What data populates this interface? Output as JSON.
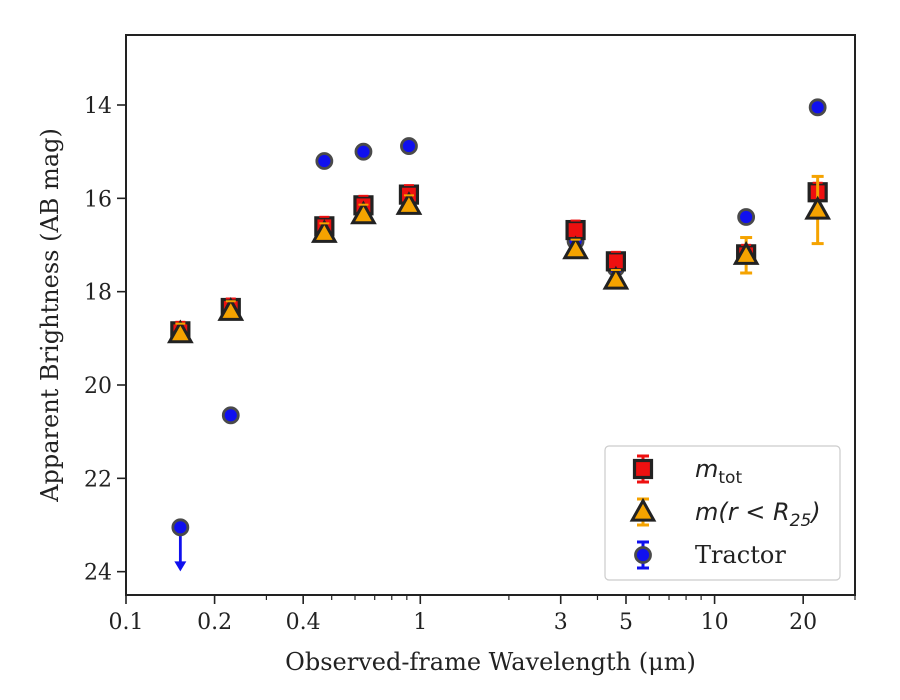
{
  "chart_data": {
    "type": "scatter",
    "title": "",
    "xlabel": "Observed-frame Wavelength (μm)",
    "ylabel": "Apparent Brightness (AB mag)",
    "xscale": "log",
    "xlim": [
      0.1,
      30
    ],
    "ylim": [
      24.5,
      12.5
    ],
    "y_inverted": true,
    "grid": false,
    "legend_position": "lower-right",
    "x_ticks": [
      {
        "value": 0.1,
        "label": "0.1"
      },
      {
        "value": 0.2,
        "label": "0.2"
      },
      {
        "value": 0.4,
        "label": "0.4"
      },
      {
        "value": 1,
        "label": "1"
      },
      {
        "value": 3,
        "label": "3"
      },
      {
        "value": 5,
        "label": "5"
      },
      {
        "value": 10,
        "label": "10"
      },
      {
        "value": 20,
        "label": "20"
      }
    ],
    "x_minor_ticks": [
      0.3,
      0.5,
      0.6,
      0.7,
      0.8,
      0.9,
      2,
      4,
      6,
      7,
      8,
      9,
      30
    ],
    "y_ticks": [
      {
        "value": 14,
        "label": "14"
      },
      {
        "value": 16,
        "label": "16"
      },
      {
        "value": 18,
        "label": "18"
      },
      {
        "value": 20,
        "label": "20"
      },
      {
        "value": 22,
        "label": "22"
      },
      {
        "value": 24,
        "label": "24"
      }
    ],
    "series": [
      {
        "key": "tractor",
        "marker": "circle",
        "face_color": "#1010ee",
        "edge_color": "#4a4a4a",
        "err_color": "#1010ee",
        "legend_text": "Tractor",
        "points": [
          {
            "x": 0.153,
            "y": 23.05,
            "yerr": 0,
            "upper_limit": true
          },
          {
            "x": 0.227,
            "y": 20.65,
            "yerr": 0
          },
          {
            "x": 0.472,
            "y": 15.2,
            "yerr": 0
          },
          {
            "x": 0.641,
            "y": 15.0,
            "yerr": 0
          },
          {
            "x": 0.915,
            "y": 14.88,
            "yerr": 0
          },
          {
            "x": 3.37,
            "y": 16.92,
            "yerr": 0
          },
          {
            "x": 4.62,
            "y": 17.5,
            "yerr": 0
          },
          {
            "x": 12.8,
            "y": 16.4,
            "yerr": 0
          },
          {
            "x": 22.4,
            "y": 14.05,
            "yerr": 0
          }
        ]
      },
      {
        "key": "mtot",
        "marker": "square",
        "face_color": "#ee1010",
        "edge_color": "#222222",
        "err_color": "#ee1010",
        "legend_math": "m",
        "legend_sub": "tot",
        "points": [
          {
            "x": 0.153,
            "y": 18.85,
            "yerr": 0
          },
          {
            "x": 0.227,
            "y": 18.35,
            "yerr": 0
          },
          {
            "x": 0.472,
            "y": 16.6,
            "yerr": 0
          },
          {
            "x": 0.641,
            "y": 16.15,
            "yerr": 0
          },
          {
            "x": 0.915,
            "y": 15.92,
            "yerr": 0
          },
          {
            "x": 3.37,
            "y": 16.68,
            "yerr": 0
          },
          {
            "x": 4.62,
            "y": 17.35,
            "yerr": 0
          },
          {
            "x": 12.8,
            "y": 17.2,
            "yerr": 0
          },
          {
            "x": 22.4,
            "y": 15.87,
            "yerr": 0
          }
        ]
      },
      {
        "key": "mr25",
        "marker": "triangle",
        "face_color": "#f5a300",
        "edge_color": "#222222",
        "err_color": "#f5a300",
        "legend_math": "m(r < R",
        "legend_sub": "25",
        "legend_tail": ")",
        "points": [
          {
            "x": 0.153,
            "y": 18.9,
            "yerr": 0
          },
          {
            "x": 0.227,
            "y": 18.42,
            "yerr": 0
          },
          {
            "x": 0.472,
            "y": 16.75,
            "yerr": 0
          },
          {
            "x": 0.641,
            "y": 16.35,
            "yerr": 0
          },
          {
            "x": 0.915,
            "y": 16.15,
            "yerr": 0
          },
          {
            "x": 3.37,
            "y": 17.1,
            "yerr": 0
          },
          {
            "x": 4.62,
            "y": 17.75,
            "yerr": 0
          },
          {
            "x": 12.8,
            "y": 17.22,
            "yerr": 0.38
          },
          {
            "x": 22.4,
            "y": 16.25,
            "yerr": 0.72
          }
        ]
      }
    ],
    "legend_order": [
      "mtot",
      "mr25",
      "tractor"
    ]
  }
}
